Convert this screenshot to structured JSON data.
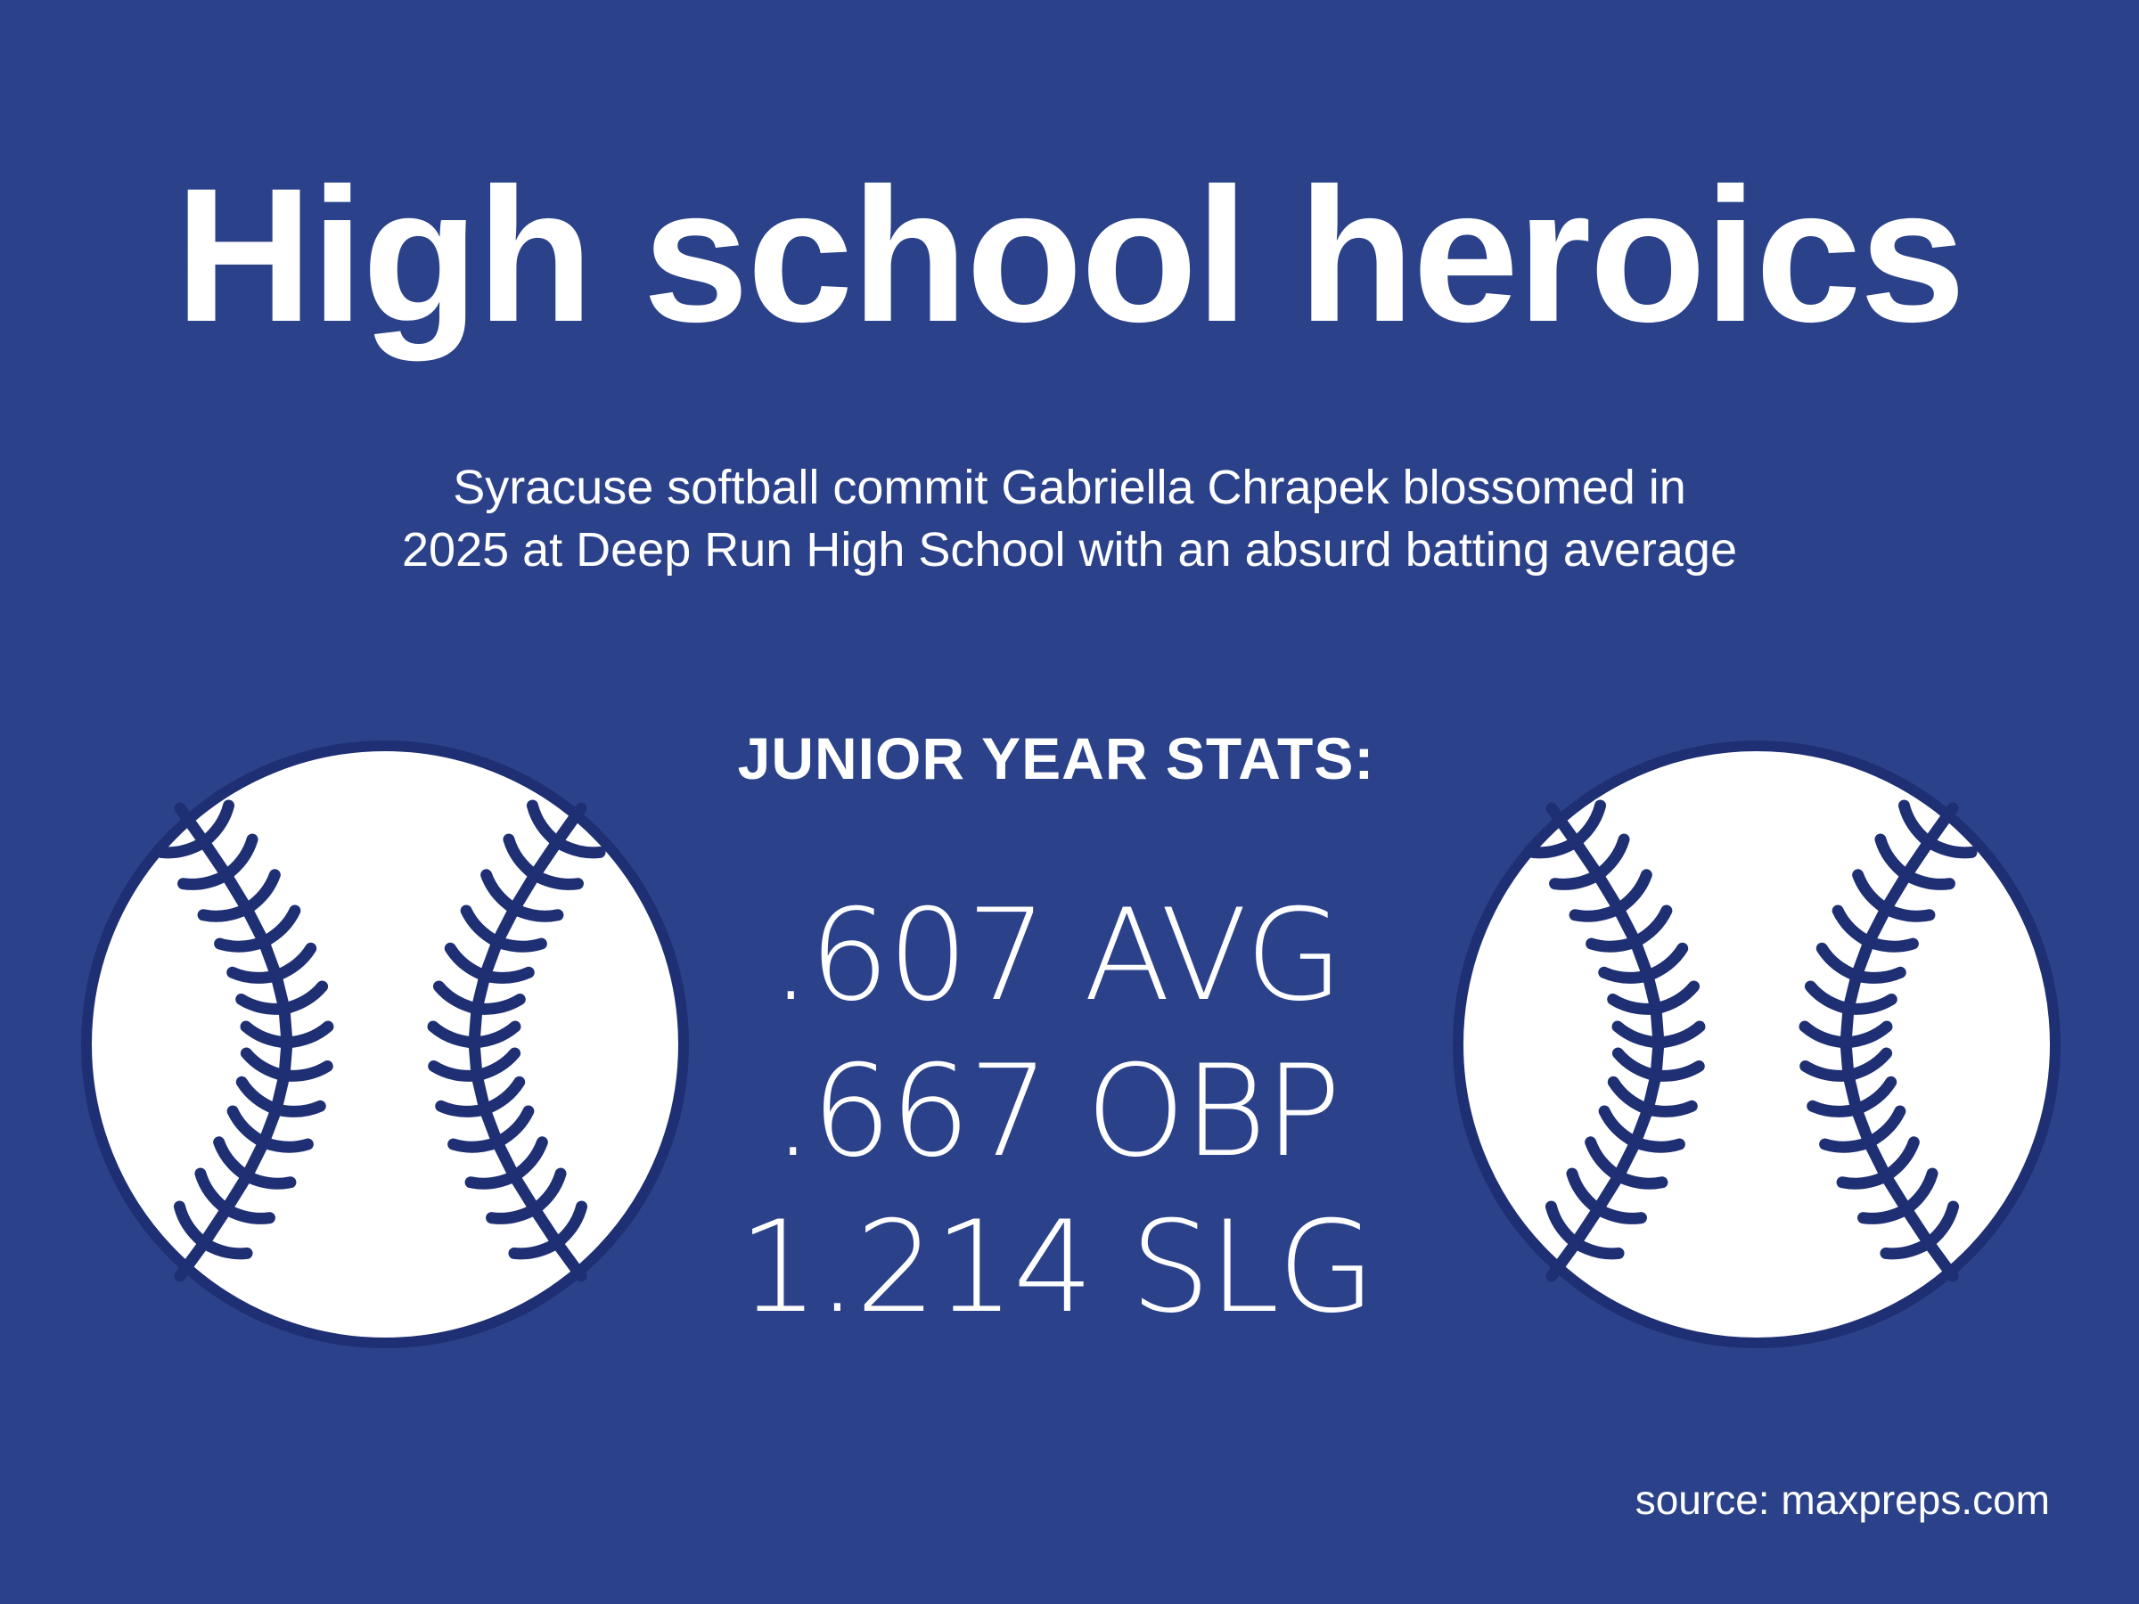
{
  "title": "High school heroics",
  "subtitle": {
    "line1": "Syracuse softball commit Gabriella Chrapek blossomed in",
    "line2": "2025 at Deep Run High School with an absurd batting average"
  },
  "stats": {
    "heading": "JUNIOR YEAR STATS:",
    "lines": [
      ".607 AVG",
      ".667 OBP",
      "1.214 SLG"
    ]
  },
  "source": "source: maxpreps.com",
  "icons": {
    "left": "softball-icon",
    "right": "softball-icon"
  },
  "colors": {
    "background": "#2b428b",
    "text": "#ffffff",
    "ball_fill": "#ffffff",
    "stitch": "#1f2f73"
  }
}
